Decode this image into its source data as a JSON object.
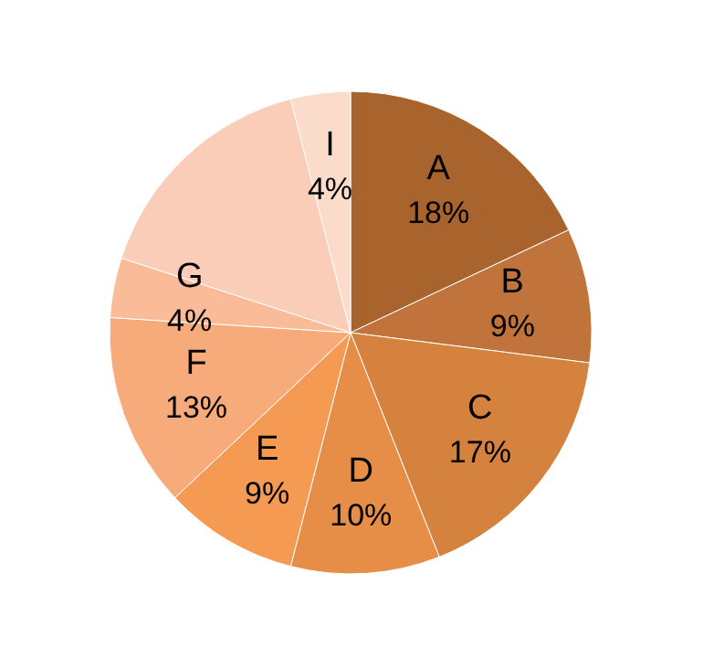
{
  "chart_data": {
    "type": "pie",
    "categories": [
      "A",
      "B",
      "C",
      "D",
      "E",
      "F",
      "G",
      null,
      "I"
    ],
    "values": [
      18,
      9,
      17,
      10,
      9,
      13,
      4,
      16,
      4
    ],
    "value_labels": [
      "18%",
      "9%",
      "17%",
      "10%",
      "9%",
      "13%",
      "4%",
      null,
      "4%"
    ],
    "colors": [
      "#a9642d",
      "#c0733a",
      "#d4823e",
      "#e68e48",
      "#f59a52",
      "#f8ab7a",
      "#f9bb98",
      "#f9cdb7",
      "#fbdccb"
    ],
    "legend": false
  }
}
